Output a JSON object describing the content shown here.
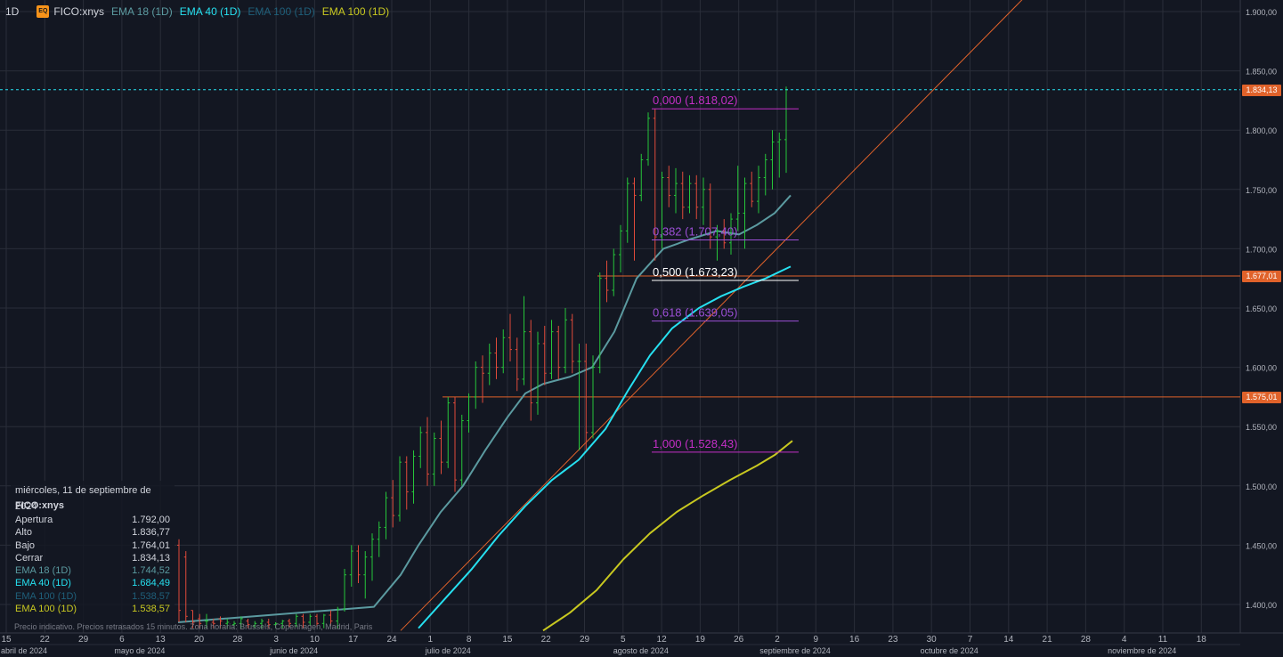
{
  "header": {
    "interval": "1D",
    "badge": "EQ",
    "symbol": "FICO:xnys",
    "indicators": [
      {
        "label": "EMA 18 (1D)",
        "color": "#5b9aa0"
      },
      {
        "label": "EMA 40 (1D)",
        "color": "#26e0f0"
      },
      {
        "label": "EMA 100 (1D)",
        "color": "#1f5f7a"
      },
      {
        "label": "EMA 100 (1D)",
        "color": "#c8c820"
      }
    ]
  },
  "info_box": {
    "date": "miércoles, 11 de septiembre de 2024",
    "symbol": "FICO:xnys",
    "rows": [
      {
        "label": "Apertura",
        "value": "1.792,00",
        "color": "#d1d4dc"
      },
      {
        "label": "Alto",
        "value": "1.836,77",
        "color": "#d1d4dc"
      },
      {
        "label": "Bajo",
        "value": "1.764,01",
        "color": "#d1d4dc"
      },
      {
        "label": "Cerrar",
        "value": "1.834,13",
        "color": "#d1d4dc"
      },
      {
        "label": "EMA 18 (1D)",
        "value": "1.744,52",
        "color": "#5b9aa0"
      },
      {
        "label": "EMA 40 (1D)",
        "value": "1.684,49",
        "color": "#26e0f0"
      },
      {
        "label": "EMA 100 (1D)",
        "value": "1.538,57",
        "color": "#1f5f7a"
      },
      {
        "label": "EMA 100 (1D)",
        "value": "1.538,57",
        "color": "#c8c820"
      }
    ]
  },
  "disclaimer": "Precio indicativo. Precios retrasados 15 minutos. Zona horaria: Brussels, Copenhagen, Madrid, Paris",
  "price_tags": [
    {
      "label": "1.834,13",
      "value": 1834.13,
      "color": "#e0622a"
    },
    {
      "label": "1.677,01",
      "value": 1677.01,
      "color": "#e0622a"
    },
    {
      "label": "1.575,01",
      "value": 1575.01,
      "color": "#e0622a"
    }
  ],
  "chart_data": {
    "type": "ohlc",
    "ylim": [
      1380,
      1910
    ],
    "y_ticks": [
      {
        "value": 1400,
        "label": "1.400,00"
      },
      {
        "value": 1450,
        "label": "1.450,00"
      },
      {
        "value": 1500,
        "label": "1.500,00"
      },
      {
        "value": 1550,
        "label": "1.550,00"
      },
      {
        "value": 1600,
        "label": "1.600,00"
      },
      {
        "value": 1650,
        "label": "1.650,00"
      },
      {
        "value": 1700,
        "label": "1.700,00"
      },
      {
        "value": 1750,
        "label": "1.750,00"
      },
      {
        "value": 1800,
        "label": "1.800,00"
      },
      {
        "value": 1850,
        "label": "1.850,00"
      },
      {
        "value": 1900,
        "label": "1.900,00"
      }
    ],
    "x_day_labels": [
      "15",
      "22",
      "29",
      "6",
      "13",
      "20",
      "28",
      "3",
      "10",
      "17",
      "24",
      "1",
      "8",
      "15",
      "22",
      "29",
      "5",
      "12",
      "19",
      "26",
      "2",
      "9",
      "16",
      "23",
      "30",
      "7",
      "14",
      "21",
      "28",
      "4",
      "11",
      "18"
    ],
    "x_month_labels": [
      {
        "label": "abril de 2024",
        "slot": 0
      },
      {
        "label": "mayo de 2024",
        "slot": 3
      },
      {
        "label": "junio de 2024",
        "slot": 7
      },
      {
        "label": "julio de 2024",
        "slot": 11
      },
      {
        "label": "agosto de 2024",
        "slot": 16
      },
      {
        "label": "septiembre de 2024",
        "slot": 20
      },
      {
        "label": "octubre de 2024",
        "slot": 24
      },
      {
        "label": "noviembre de 2024",
        "slot": 29
      }
    ],
    "fib_levels": [
      {
        "ratio": "0,000",
        "value": 1818.02,
        "label": "0,000 (1.818,02)",
        "color": "#c42fc6"
      },
      {
        "ratio": "0,382",
        "value": 1707.4,
        "label": "0,382 (1.707,40)",
        "color": "#9c4fd6"
      },
      {
        "ratio": "0,500",
        "value": 1673.23,
        "label": "0,500 (1.673,23)",
        "color": "#ffffff"
      },
      {
        "ratio": "0,618",
        "value": 1639.05,
        "label": "0,618 (1.639,05)",
        "color": "#9c4fd6"
      },
      {
        "ratio": "1,000",
        "value": 1528.43,
        "label": "1,000 (1.528,43)",
        "color": "#c42fc6"
      }
    ],
    "horizontal_lines": [
      {
        "value": 1677.01,
        "color": "#e0622a"
      },
      {
        "value": 1575.01,
        "color": "#e0622a"
      }
    ],
    "last_price": 1834.13,
    "bars": [
      {
        "o": 1450,
        "h": 1455,
        "l": 1385,
        "c": 1395
      },
      {
        "o": 1440,
        "h": 1445,
        "l": 1385,
        "c": 1390
      },
      {
        "o": 1395,
        "h": 1395,
        "l": 1380,
        "c": 1385
      },
      {
        "o": 1388,
        "h": 1392,
        "l": 1380,
        "c": 1384
      },
      {
        "o": 1386,
        "h": 1392,
        "l": 1380,
        "c": 1386
      },
      {
        "o": 1385,
        "h": 1388,
        "l": 1380,
        "c": 1384
      },
      {
        "o": 1388,
        "h": 1390,
        "l": 1380,
        "c": 1386
      },
      {
        "o": 1384,
        "h": 1388,
        "l": 1380,
        "c": 1385
      },
      {
        "o": 1383,
        "h": 1386,
        "l": 1380,
        "c": 1384
      },
      {
        "o": 1384,
        "h": 1390,
        "l": 1380,
        "c": 1388
      },
      {
        "o": 1386,
        "h": 1388,
        "l": 1380,
        "c": 1383
      },
      {
        "o": 1382,
        "h": 1386,
        "l": 1380,
        "c": 1384
      },
      {
        "o": 1384,
        "h": 1388,
        "l": 1380,
        "c": 1386
      },
      {
        "o": 1385,
        "h": 1388,
        "l": 1380,
        "c": 1383
      },
      {
        "o": 1383,
        "h": 1385,
        "l": 1380,
        "c": 1384
      },
      {
        "o": 1384,
        "h": 1387,
        "l": 1380,
        "c": 1386
      },
      {
        "o": 1386,
        "h": 1388,
        "l": 1381,
        "c": 1384
      },
      {
        "o": 1384,
        "h": 1392,
        "l": 1381,
        "c": 1390
      },
      {
        "o": 1390,
        "h": 1392,
        "l": 1380,
        "c": 1385
      },
      {
        "o": 1385,
        "h": 1392,
        "l": 1382,
        "c": 1390
      },
      {
        "o": 1390,
        "h": 1392,
        "l": 1381,
        "c": 1384
      },
      {
        "o": 1384,
        "h": 1392,
        "l": 1380,
        "c": 1391
      },
      {
        "o": 1391,
        "h": 1395,
        "l": 1382,
        "c": 1386
      },
      {
        "o": 1386,
        "h": 1398,
        "l": 1380,
        "c": 1396
      },
      {
        "o": 1396,
        "h": 1430,
        "l": 1394,
        "c": 1425
      },
      {
        "o": 1425,
        "h": 1450,
        "l": 1415,
        "c": 1445
      },
      {
        "o": 1445,
        "h": 1450,
        "l": 1418,
        "c": 1425
      },
      {
        "o": 1425,
        "h": 1445,
        "l": 1405,
        "c": 1440
      },
      {
        "o": 1440,
        "h": 1460,
        "l": 1420,
        "c": 1455
      },
      {
        "o": 1455,
        "h": 1470,
        "l": 1440,
        "c": 1465
      },
      {
        "o": 1465,
        "h": 1495,
        "l": 1455,
        "c": 1490
      },
      {
        "o": 1490,
        "h": 1505,
        "l": 1465,
        "c": 1475
      },
      {
        "o": 1475,
        "h": 1525,
        "l": 1470,
        "c": 1520
      },
      {
        "o": 1520,
        "h": 1525,
        "l": 1480,
        "c": 1495
      },
      {
        "o": 1495,
        "h": 1530,
        "l": 1485,
        "c": 1525
      },
      {
        "o": 1525,
        "h": 1550,
        "l": 1515,
        "c": 1545
      },
      {
        "o": 1545,
        "h": 1558,
        "l": 1500,
        "c": 1510
      },
      {
        "o": 1510,
        "h": 1545,
        "l": 1500,
        "c": 1540
      },
      {
        "o": 1540,
        "h": 1555,
        "l": 1510,
        "c": 1520
      },
      {
        "o": 1520,
        "h": 1575,
        "l": 1515,
        "c": 1570
      },
      {
        "o": 1570,
        "h": 1575,
        "l": 1495,
        "c": 1505
      },
      {
        "o": 1505,
        "h": 1560,
        "l": 1500,
        "c": 1555
      },
      {
        "o": 1555,
        "h": 1578,
        "l": 1545,
        "c": 1575
      },
      {
        "o": 1575,
        "h": 1605,
        "l": 1565,
        "c": 1600
      },
      {
        "o": 1600,
        "h": 1610,
        "l": 1570,
        "c": 1595
      },
      {
        "o": 1595,
        "h": 1620,
        "l": 1585,
        "c": 1612
      },
      {
        "o": 1612,
        "h": 1625,
        "l": 1590,
        "c": 1600
      },
      {
        "o": 1600,
        "h": 1632,
        "l": 1595,
        "c": 1625
      },
      {
        "o": 1625,
        "h": 1645,
        "l": 1605,
        "c": 1615
      },
      {
        "o": 1615,
        "h": 1625,
        "l": 1580,
        "c": 1590
      },
      {
        "o": 1590,
        "h": 1660,
        "l": 1585,
        "c": 1630
      },
      {
        "o": 1630,
        "h": 1640,
        "l": 1555,
        "c": 1570
      },
      {
        "o": 1570,
        "h": 1630,
        "l": 1560,
        "c": 1620
      },
      {
        "o": 1620,
        "h": 1635,
        "l": 1585,
        "c": 1595
      },
      {
        "o": 1595,
        "h": 1640,
        "l": 1590,
        "c": 1630
      },
      {
        "o": 1630,
        "h": 1635,
        "l": 1590,
        "c": 1600
      },
      {
        "o": 1600,
        "h": 1650,
        "l": 1595,
        "c": 1640
      },
      {
        "o": 1640,
        "h": 1645,
        "l": 1595,
        "c": 1605
      },
      {
        "o": 1605,
        "h": 1620,
        "l": 1530,
        "c": 1605
      },
      {
        "o": 1605,
        "h": 1620,
        "l": 1530,
        "c": 1545
      },
      {
        "o": 1545,
        "h": 1610,
        "l": 1540,
        "c": 1600
      },
      {
        "o": 1600,
        "h": 1680,
        "l": 1595,
        "c": 1675
      },
      {
        "o": 1675,
        "h": 1690,
        "l": 1655,
        "c": 1665
      },
      {
        "o": 1665,
        "h": 1700,
        "l": 1660,
        "c": 1695
      },
      {
        "o": 1695,
        "h": 1720,
        "l": 1680,
        "c": 1715
      },
      {
        "o": 1715,
        "h": 1760,
        "l": 1705,
        "c": 1755
      },
      {
        "o": 1755,
        "h": 1760,
        "l": 1690,
        "c": 1745
      },
      {
        "o": 1745,
        "h": 1780,
        "l": 1740,
        "c": 1775
      },
      {
        "o": 1775,
        "h": 1815,
        "l": 1770,
        "c": 1810
      },
      {
        "o": 1810,
        "h": 1818,
        "l": 1690,
        "c": 1710
      },
      {
        "o": 1710,
        "h": 1765,
        "l": 1700,
        "c": 1760
      },
      {
        "o": 1760,
        "h": 1770,
        "l": 1735,
        "c": 1745
      },
      {
        "o": 1745,
        "h": 1768,
        "l": 1730,
        "c": 1755
      },
      {
        "o": 1755,
        "h": 1765,
        "l": 1725,
        "c": 1735
      },
      {
        "o": 1735,
        "h": 1762,
        "l": 1730,
        "c": 1755
      },
      {
        "o": 1755,
        "h": 1762,
        "l": 1725,
        "c": 1735
      },
      {
        "o": 1735,
        "h": 1760,
        "l": 1720,
        "c": 1750
      },
      {
        "o": 1750,
        "h": 1755,
        "l": 1700,
        "c": 1710
      },
      {
        "o": 1710,
        "h": 1720,
        "l": 1690,
        "c": 1715
      },
      {
        "o": 1715,
        "h": 1725,
        "l": 1700,
        "c": 1705
      },
      {
        "o": 1705,
        "h": 1730,
        "l": 1695,
        "c": 1725
      },
      {
        "o": 1725,
        "h": 1770,
        "l": 1715,
        "c": 1730
      },
      {
        "o": 1730,
        "h": 1760,
        "l": 1700,
        "c": 1755
      },
      {
        "o": 1755,
        "h": 1765,
        "l": 1735,
        "c": 1740
      },
      {
        "o": 1740,
        "h": 1770,
        "l": 1730,
        "c": 1760
      },
      {
        "o": 1760,
        "h": 1780,
        "l": 1745,
        "c": 1775
      },
      {
        "o": 1775,
        "h": 1800,
        "l": 1750,
        "c": 1790
      },
      {
        "o": 1790,
        "h": 1798,
        "l": 1760,
        "c": 1792
      },
      {
        "o": 1792,
        "h": 1836.77,
        "l": 1764.01,
        "c": 1834.13
      }
    ],
    "ema18": [
      [
        200,
        1385
      ],
      [
        420,
        1398
      ],
      [
        450,
        1425
      ],
      [
        470,
        1450
      ],
      [
        495,
        1478
      ],
      [
        520,
        1500
      ],
      [
        545,
        1530
      ],
      [
        570,
        1558
      ],
      [
        590,
        1578
      ],
      [
        610,
        1586
      ],
      [
        640,
        1592
      ],
      [
        665,
        1600
      ],
      [
        690,
        1630
      ],
      [
        715,
        1675
      ],
      [
        745,
        1700
      ],
      [
        775,
        1708
      ],
      [
        805,
        1715
      ],
      [
        830,
        1712
      ],
      [
        850,
        1720
      ],
      [
        870,
        1730
      ],
      [
        888,
        1745
      ]
    ],
    "ema40": [
      [
        470,
        1380
      ],
      [
        500,
        1405
      ],
      [
        530,
        1430
      ],
      [
        560,
        1458
      ],
      [
        590,
        1483
      ],
      [
        620,
        1505
      ],
      [
        650,
        1522
      ],
      [
        680,
        1548
      ],
      [
        705,
        1580
      ],
      [
        730,
        1610
      ],
      [
        755,
        1633
      ],
      [
        785,
        1650
      ],
      [
        810,
        1660
      ],
      [
        835,
        1668
      ],
      [
        860,
        1675
      ],
      [
        888,
        1685
      ]
    ],
    "ema100": [
      [
        610,
        1378
      ],
      [
        640,
        1393
      ],
      [
        670,
        1412
      ],
      [
        700,
        1438
      ],
      [
        730,
        1460
      ],
      [
        760,
        1478
      ],
      [
        790,
        1492
      ],
      [
        820,
        1505
      ],
      [
        850,
        1517
      ],
      [
        870,
        1526
      ],
      [
        890,
        1538
      ]
    ],
    "trendline": {
      "x1": 450,
      "y1": 1378,
      "x2": 1148,
      "y2": 1910,
      "color": "#e0622a"
    }
  }
}
